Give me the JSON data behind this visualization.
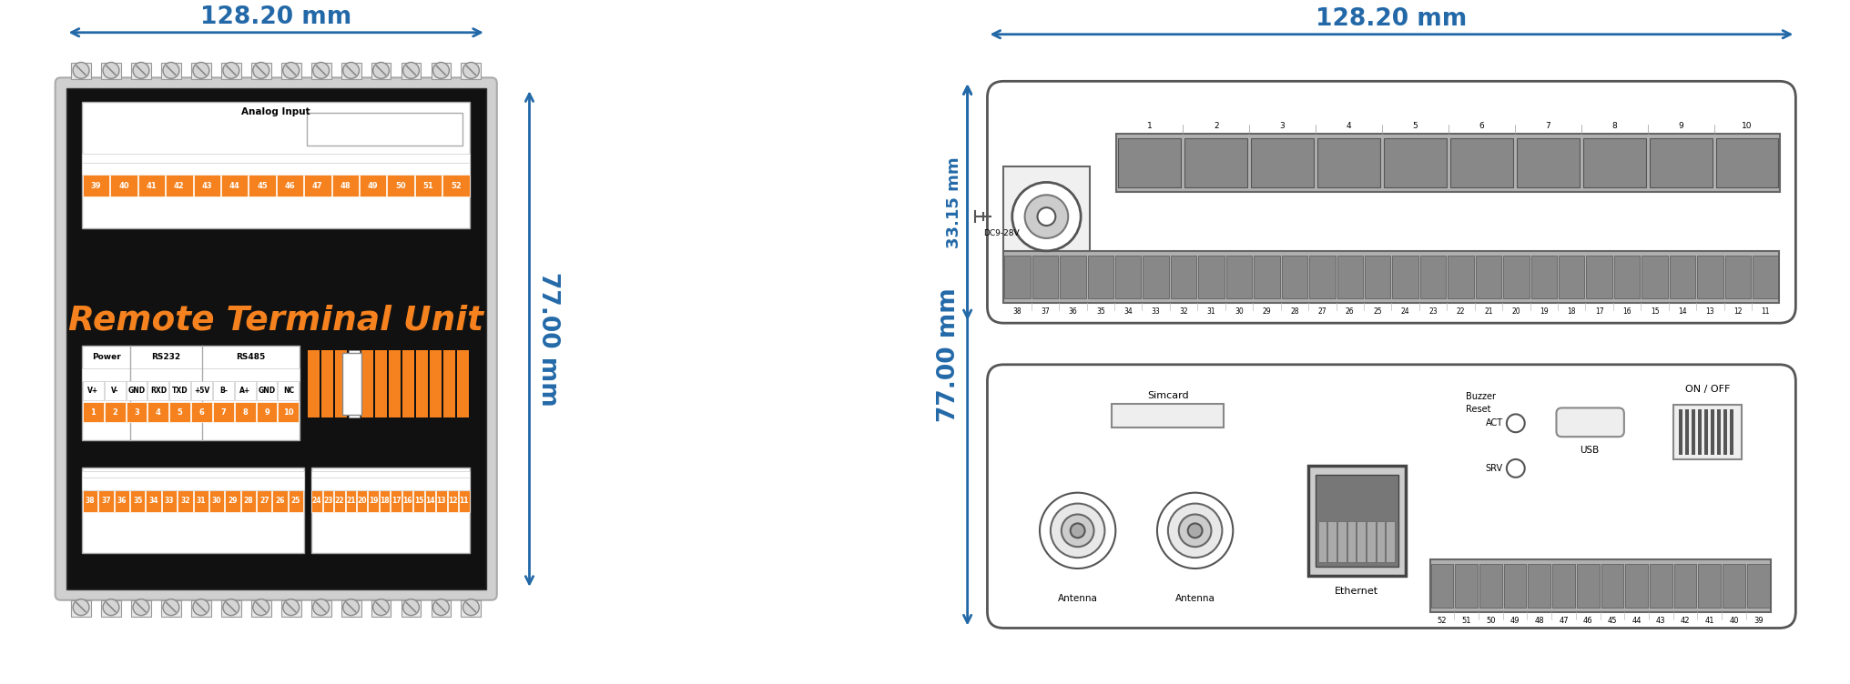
{
  "bg_color": "#ffffff",
  "blue": "#2369a8",
  "orange": "#f5821e",
  "dark_bg": "#111111",
  "dim_width_text": "128.20 mm",
  "dim_height_text": "77.00 mm",
  "dim_33_text": "33.15 mm",
  "dim_128_right": "128.20 mm",
  "front_title": "Remote Terminal Unit",
  "front_analog_label": "Analog Input",
  "front_top_numbers": [
    "39",
    "40",
    "41",
    "42",
    "43",
    "44",
    "45",
    "46",
    "47",
    "48",
    "49",
    "50",
    "51",
    "52"
  ],
  "front_bottom_left_numbers": [
    "38",
    "37",
    "36",
    "35",
    "34",
    "33",
    "32",
    "31",
    "30",
    "29",
    "28",
    "27",
    "26",
    "25"
  ],
  "front_bottom_right_numbers": [
    "24",
    "23",
    "22",
    "21",
    "20",
    "19",
    "18",
    "17",
    "16",
    "15",
    "14",
    "13",
    "12",
    "11"
  ],
  "power_rs232_rs485_labels": [
    "V+",
    "V-",
    "GND",
    "RXD",
    "TXD",
    "+5V",
    "B-",
    "A+",
    "GND",
    "NC"
  ],
  "power_rs232_rs485_nums": [
    "1",
    "2",
    "3",
    "4",
    "5",
    "6",
    "7",
    "8",
    "9",
    "10"
  ],
  "power_label": "Power",
  "rs232_label": "RS232",
  "rs485_label": "RS485",
  "top_panel_numbers": [
    "1",
    "2",
    "3",
    "4",
    "5",
    "6",
    "7",
    "8",
    "9",
    "10"
  ],
  "top_panel_bottom_numbers": [
    "38",
    "37",
    "36",
    "35",
    "34",
    "33",
    "32",
    "31",
    "30",
    "29",
    "28",
    "27",
    "26",
    "25",
    "24",
    "23",
    "22",
    "21",
    "20",
    "19",
    "18",
    "17",
    "16",
    "15",
    "14",
    "13",
    "12",
    "11"
  ],
  "bottom_panel_connector_numbers": [
    "52",
    "51",
    "50",
    "49",
    "48",
    "47",
    "46",
    "45",
    "44",
    "43",
    "42",
    "41",
    "40",
    "39"
  ]
}
